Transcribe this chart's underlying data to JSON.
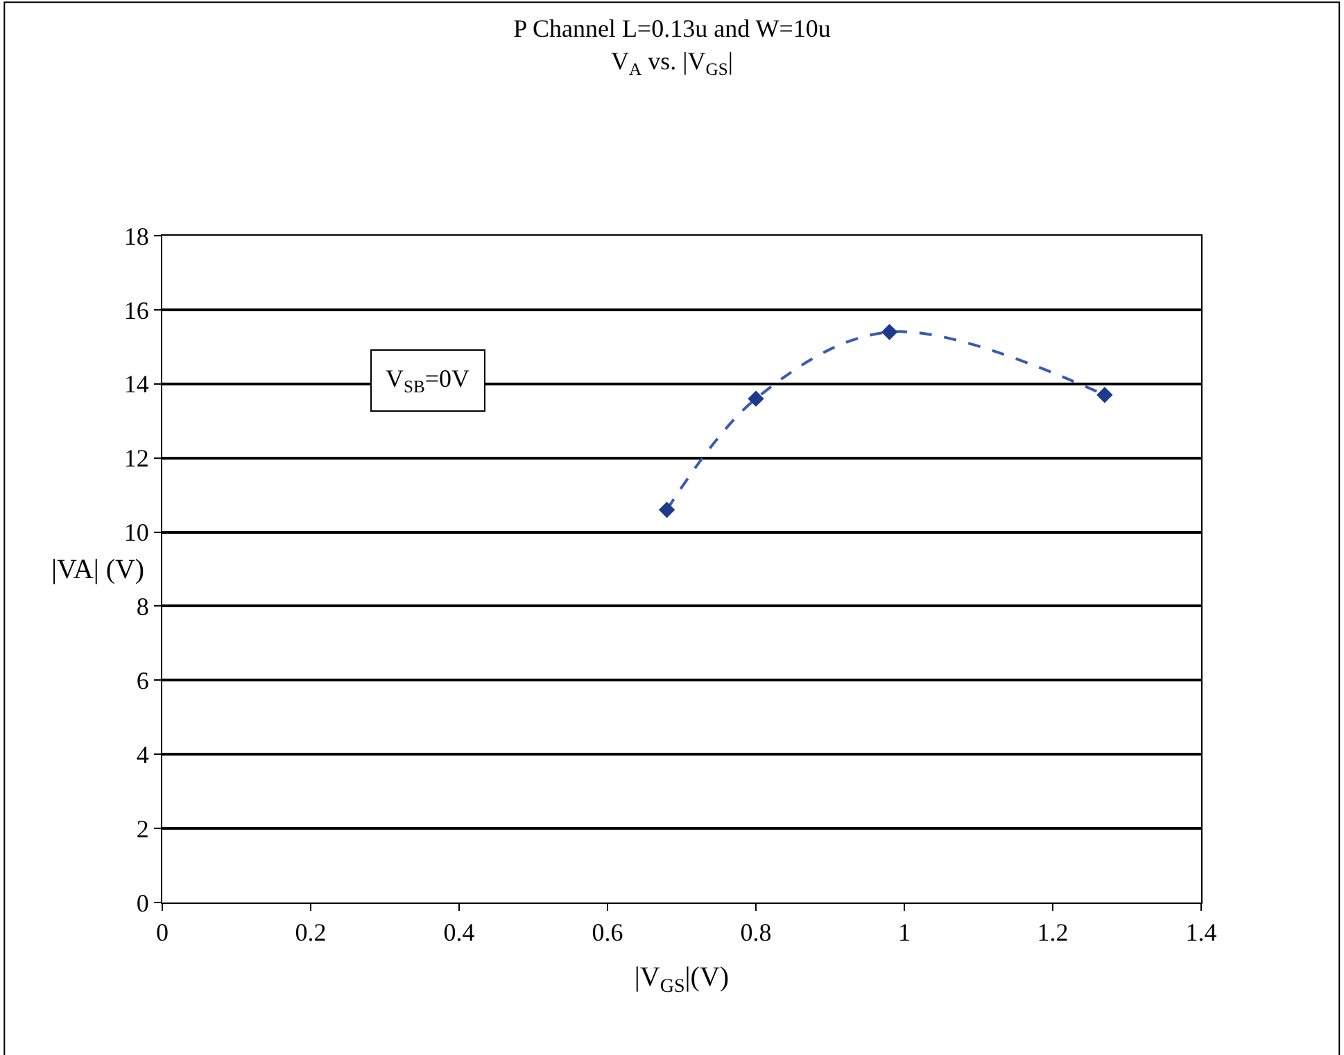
{
  "chart_data": {
    "type": "line",
    "title": "P Channel L=0.13u and W=10u\nV$_{A}$ vs. |V$_{GS}$|",
    "xlabel": "|V$_{GS}$|(V)",
    "ylabel": "|VA| (V)",
    "annotations": [
      "V$_{SB}$=0V"
    ],
    "series": [
      {
        "color": "#3a5bb0",
        "x": [
          0.68,
          0.8,
          0.98,
          1.27
        ],
        "values": [
          10.6,
          13.6,
          15.4,
          13.7
        ]
      }
    ],
    "xlim": [
      0,
      1.4
    ],
    "xticks": [
      0,
      0.2,
      0.4,
      0.6,
      0.8,
      1,
      1.2,
      1.4
    ],
    "ylim": [
      0,
      18
    ],
    "yticks": [
      0,
      2,
      4,
      6,
      8,
      10,
      12,
      14,
      16,
      18
    ],
    "grid": "y",
    "marker": "diamond",
    "line_style": "dashed"
  }
}
